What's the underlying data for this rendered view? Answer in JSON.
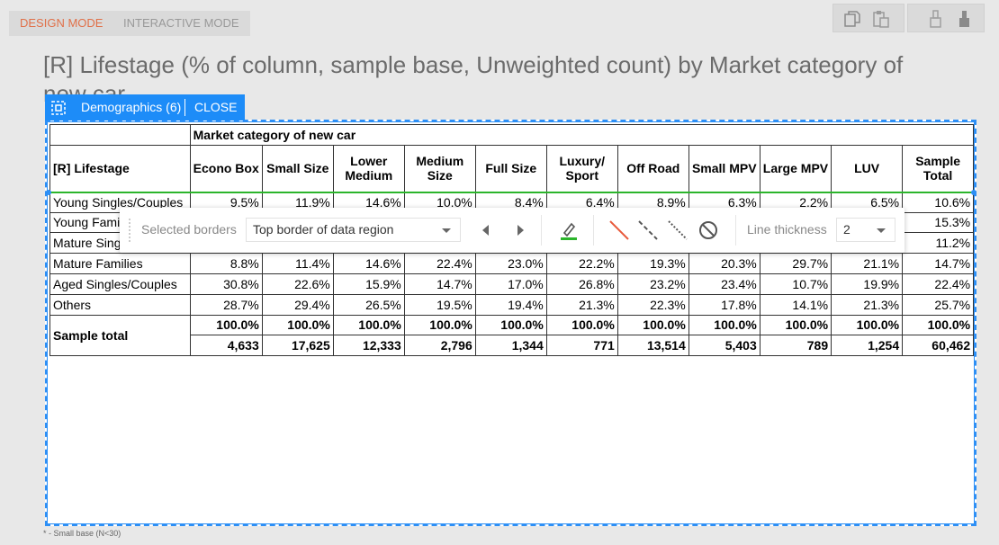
{
  "tabs": {
    "design": "DESIGN MODE",
    "interactive": "INTERACTIVE MODE"
  },
  "title": "[R] Lifestage (% of column, sample base, Unweighted count) by Market category of new car",
  "selection": {
    "label": "Demographics (6)",
    "close": "CLOSE"
  },
  "table": {
    "banner": "Market category of new car",
    "row_header_title": "[R] Lifestage",
    "columns": [
      "Econo Box",
      "Small Size",
      "Lower Medium",
      "Medium Size",
      "Full Size",
      "Luxury/ Sport",
      "Off Road",
      "Small MPV",
      "Large MPV",
      "LUV",
      "Sample Total"
    ],
    "rows": [
      {
        "label": "Young Singles/Couples",
        "values": [
          "9.5%",
          "11.9%",
          "14.6%",
          "10.0%",
          "8.4%",
          "6.4%",
          "8.9%",
          "6.3%",
          "2.2%",
          "6.5%",
          "10.6%"
        ]
      },
      {
        "label": "Young Families",
        "values": [
          "",
          "",
          "",
          "",
          "",
          "",
          "",
          "",
          "",
          "",
          "15.3%"
        ]
      },
      {
        "label": "Mature Singles/Couples",
        "values": [
          "",
          "",
          "",
          "",
          "",
          "",
          "",
          "",
          "",
          "",
          "11.2%"
        ]
      },
      {
        "label": "Mature Families",
        "values": [
          "8.8%",
          "11.4%",
          "14.6%",
          "22.4%",
          "23.0%",
          "22.2%",
          "19.3%",
          "20.3%",
          "29.7%",
          "21.1%",
          "14.7%"
        ]
      },
      {
        "label": "Aged Singles/Couples",
        "values": [
          "30.8%",
          "22.6%",
          "15.9%",
          "14.7%",
          "17.0%",
          "26.8%",
          "23.2%",
          "23.4%",
          "10.7%",
          "19.9%",
          "22.4%"
        ]
      },
      {
        "label": "Others",
        "values": [
          "28.7%",
          "29.4%",
          "26.5%",
          "19.5%",
          "19.4%",
          "21.3%",
          "22.3%",
          "17.8%",
          "14.1%",
          "21.3%",
          "25.7%"
        ]
      }
    ],
    "total_label": "Sample total",
    "total_pct": [
      "100.0%",
      "100.0%",
      "100.0%",
      "100.0%",
      "100.0%",
      "100.0%",
      "100.0%",
      "100.0%",
      "100.0%",
      "100.0%",
      "100.0%"
    ],
    "total_count": [
      "4,633",
      "17,625",
      "12,333",
      "2,796",
      "1,344",
      "771",
      "13,514",
      "5,403",
      "789",
      "1,254",
      "60,462"
    ]
  },
  "border_toolbar": {
    "selected_borders_label": "Selected borders",
    "selected_borders_value": "Top border of data region",
    "line_thickness_label": "Line thickness",
    "line_thickness_value": "2",
    "border_color": "#2cb52c"
  },
  "footnote": "* - Small base (N<30)"
}
